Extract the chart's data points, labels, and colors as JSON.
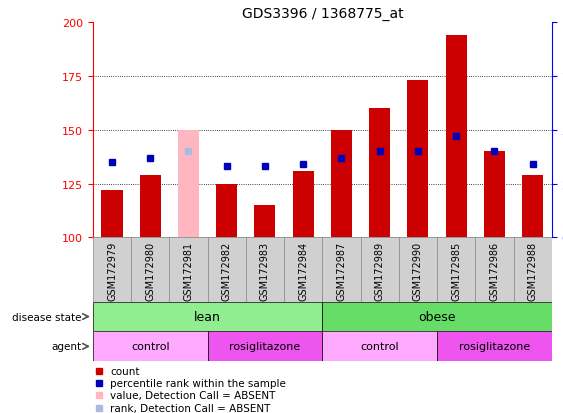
{
  "title": "GDS3396 / 1368775_at",
  "samples": [
    "GSM172979",
    "GSM172980",
    "GSM172981",
    "GSM172982",
    "GSM172983",
    "GSM172984",
    "GSM172987",
    "GSM172989",
    "GSM172990",
    "GSM172985",
    "GSM172986",
    "GSM172988"
  ],
  "count_values": [
    122,
    129,
    150,
    125,
    115,
    131,
    150,
    160,
    173,
    194,
    140,
    129
  ],
  "percentile_values": [
    35,
    37,
    40,
    33,
    33,
    34,
    37,
    40,
    40,
    47,
    40,
    34
  ],
  "absent_mask": [
    false,
    false,
    true,
    false,
    false,
    false,
    false,
    false,
    false,
    false,
    false,
    false
  ],
  "ylim_left": [
    100,
    200
  ],
  "ylim_right": [
    0,
    100
  ],
  "yticks_left": [
    100,
    125,
    150,
    175,
    200
  ],
  "yticks_right": [
    0,
    25,
    50,
    75,
    100
  ],
  "disease_state_groups": [
    {
      "label": "lean",
      "start": 0,
      "end": 6,
      "color": "#90EE90"
    },
    {
      "label": "obese",
      "start": 6,
      "end": 12,
      "color": "#66DD66"
    }
  ],
  "agent_groups": [
    {
      "label": "control",
      "start": 0,
      "end": 3,
      "color": "#FFAAFF"
    },
    {
      "label": "rosiglitazone",
      "start": 3,
      "end": 6,
      "color": "#EE55EE"
    },
    {
      "label": "control",
      "start": 6,
      "end": 9,
      "color": "#FFAAFF"
    },
    {
      "label": "rosiglitazone",
      "start": 9,
      "end": 12,
      "color": "#EE55EE"
    }
  ],
  "bar_width": 0.55,
  "count_color": "#CC0000",
  "absent_bar_color": "#FFB6C1",
  "percentile_color": "#0000BB",
  "absent_percentile_color": "#AABBDD",
  "bar_bottom": 100,
  "legend_items": [
    {
      "label": "count",
      "color": "#CC0000"
    },
    {
      "label": "percentile rank within the sample",
      "color": "#0000BB"
    },
    {
      "label": "value, Detection Call = ABSENT",
      "color": "#FFB6C1"
    },
    {
      "label": "rank, Detection Call = ABSENT",
      "color": "#AABBDD"
    }
  ]
}
